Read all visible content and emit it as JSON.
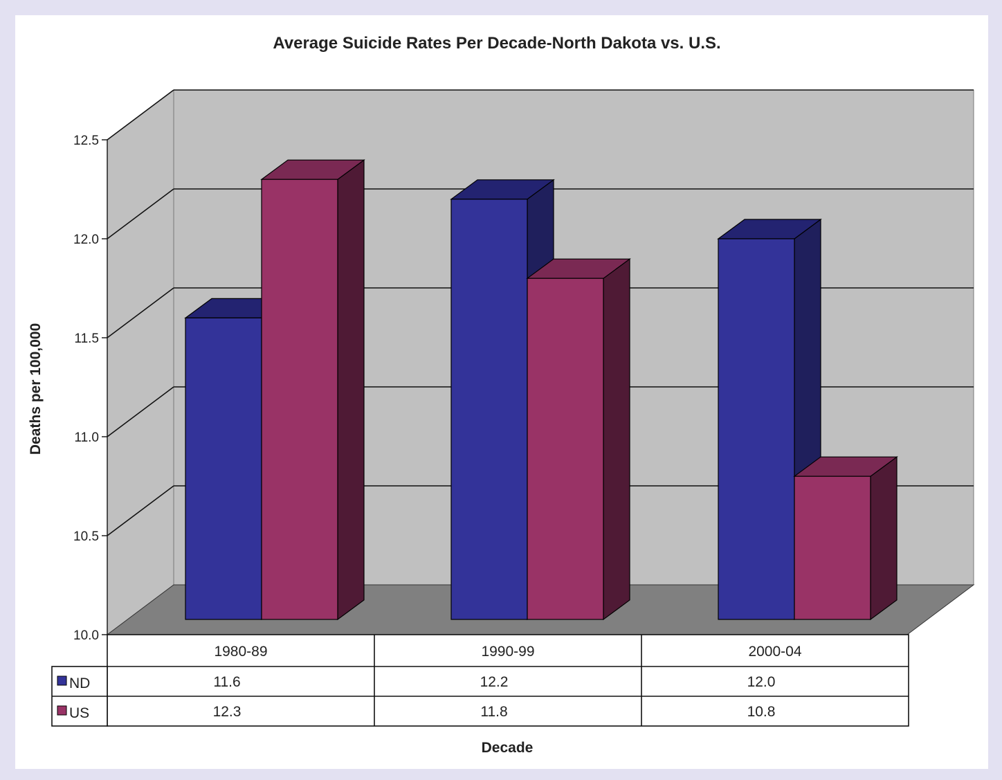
{
  "chart_data": {
    "type": "bar",
    "title": "Average Suicide Rates Per Decade-North Dakota vs. U.S.",
    "xlabel": "Decade",
    "ylabel": "Deaths per 100,000",
    "categories": [
      "1980-89",
      "1990-99",
      "2000-04"
    ],
    "series": [
      {
        "name": "ND",
        "values": [
          11.6,
          12.2,
          12.0
        ],
        "value_labels": [
          "11.6",
          "12.2",
          "12.0"
        ],
        "color": "#333399"
      },
      {
        "name": "US",
        "values": [
          12.3,
          11.8,
          10.8
        ],
        "value_labels": [
          "12.3",
          "11.8",
          "10.8"
        ],
        "color": "#993366"
      }
    ],
    "ylim": [
      10.0,
      12.5
    ],
    "yticks": [
      "10.0",
      "10.5",
      "11.0",
      "11.5",
      "12.0",
      "12.5"
    ],
    "grid": true,
    "legend": "data-table-left",
    "style": "3d-clustered-column-with-data-table"
  }
}
